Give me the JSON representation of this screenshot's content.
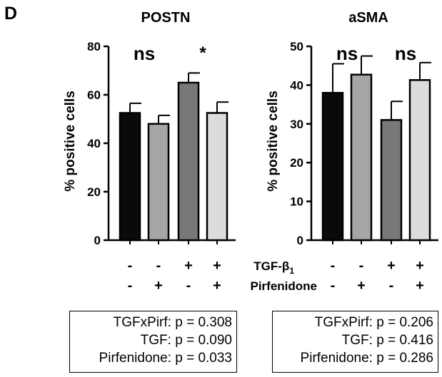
{
  "panel_label": "D",
  "row_labels": {
    "tgf": "TGF-β",
    "tgf_subscript": "1",
    "pirf": "Pirfenidone"
  },
  "treatment_signs": {
    "tgf": [
      "-",
      "-",
      "+",
      "+"
    ],
    "pirf": [
      "-",
      "+",
      "-",
      "+"
    ]
  },
  "bar_colors": [
    "#0a0a0a",
    "#a6a6a6",
    "#787878",
    "#dcdcdc"
  ],
  "chart_data": [
    {
      "type": "bar",
      "title": "POSTN",
      "ylabel": "% positive cells",
      "ylim": [
        0,
        80
      ],
      "yticks": [
        0,
        20,
        40,
        60,
        80
      ],
      "categories": [
        "TGF- / Pirf-",
        "TGF- / Pirf+",
        "TGF+ / Pirf-",
        "TGF+ / Pirf+"
      ],
      "values": [
        52.5,
        48,
        65,
        52.5
      ],
      "errors": [
        4,
        3.5,
        4,
        4.5
      ],
      "grid": false,
      "annotations": [
        {
          "text": "ns",
          "over": [
            0,
            1
          ]
        },
        {
          "text": "*",
          "over": [
            2,
            3
          ]
        }
      ],
      "stats": [
        "TGFxPirf: p = 0.308",
        "TGF: p = 0.090",
        "Pirfenidone: p = 0.033"
      ]
    },
    {
      "type": "bar",
      "title": "aSMA",
      "ylabel": "% positive cells",
      "ylim": [
        0,
        50
      ],
      "yticks": [
        0,
        10,
        20,
        30,
        40,
        50
      ],
      "categories": [
        "TGF- / Pirf-",
        "TGF- / Pirf+",
        "TGF+ / Pirf-",
        "TGF+ / Pirf+"
      ],
      "values": [
        38,
        42.7,
        31,
        41.3
      ],
      "errors": [
        7.5,
        4.8,
        4.8,
        4.5
      ],
      "grid": false,
      "annotations": [
        {
          "text": "ns",
          "over": [
            0,
            1
          ]
        },
        {
          "text": "ns",
          "over": [
            2,
            3
          ]
        }
      ],
      "stats": [
        "TGFxPirf: p = 0.206",
        "TGF: p = 0.416",
        "Pirfenidone: p = 0.286"
      ]
    }
  ]
}
